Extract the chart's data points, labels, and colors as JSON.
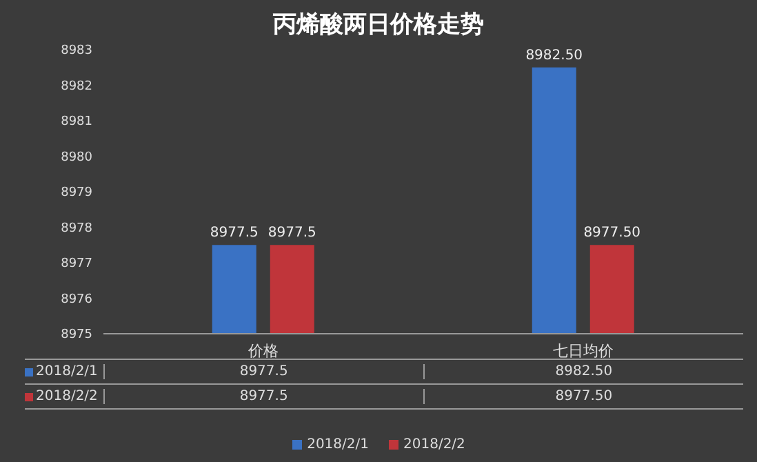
{
  "chart_data": {
    "type": "bar",
    "title": "丙烯酸两日价格走势",
    "categories": [
      "价格",
      "七日均价"
    ],
    "series": [
      {
        "name": "2018/2/1",
        "color": "#3a72c4",
        "values": [
          8977.5,
          8982.5
        ],
        "value_labels": [
          "8977.5",
          "8982.50"
        ]
      },
      {
        "name": "2018/2/2",
        "color": "#c0353a",
        "values": [
          8977.5,
          8977.5
        ],
        "value_labels": [
          "8977.5",
          "8977.50"
        ]
      }
    ],
    "ylim": [
      8975,
      8983
    ],
    "yticks": [
      8975,
      8976,
      8977,
      8978,
      8979,
      8980,
      8981,
      8982,
      8983
    ],
    "legend": "bottom"
  }
}
